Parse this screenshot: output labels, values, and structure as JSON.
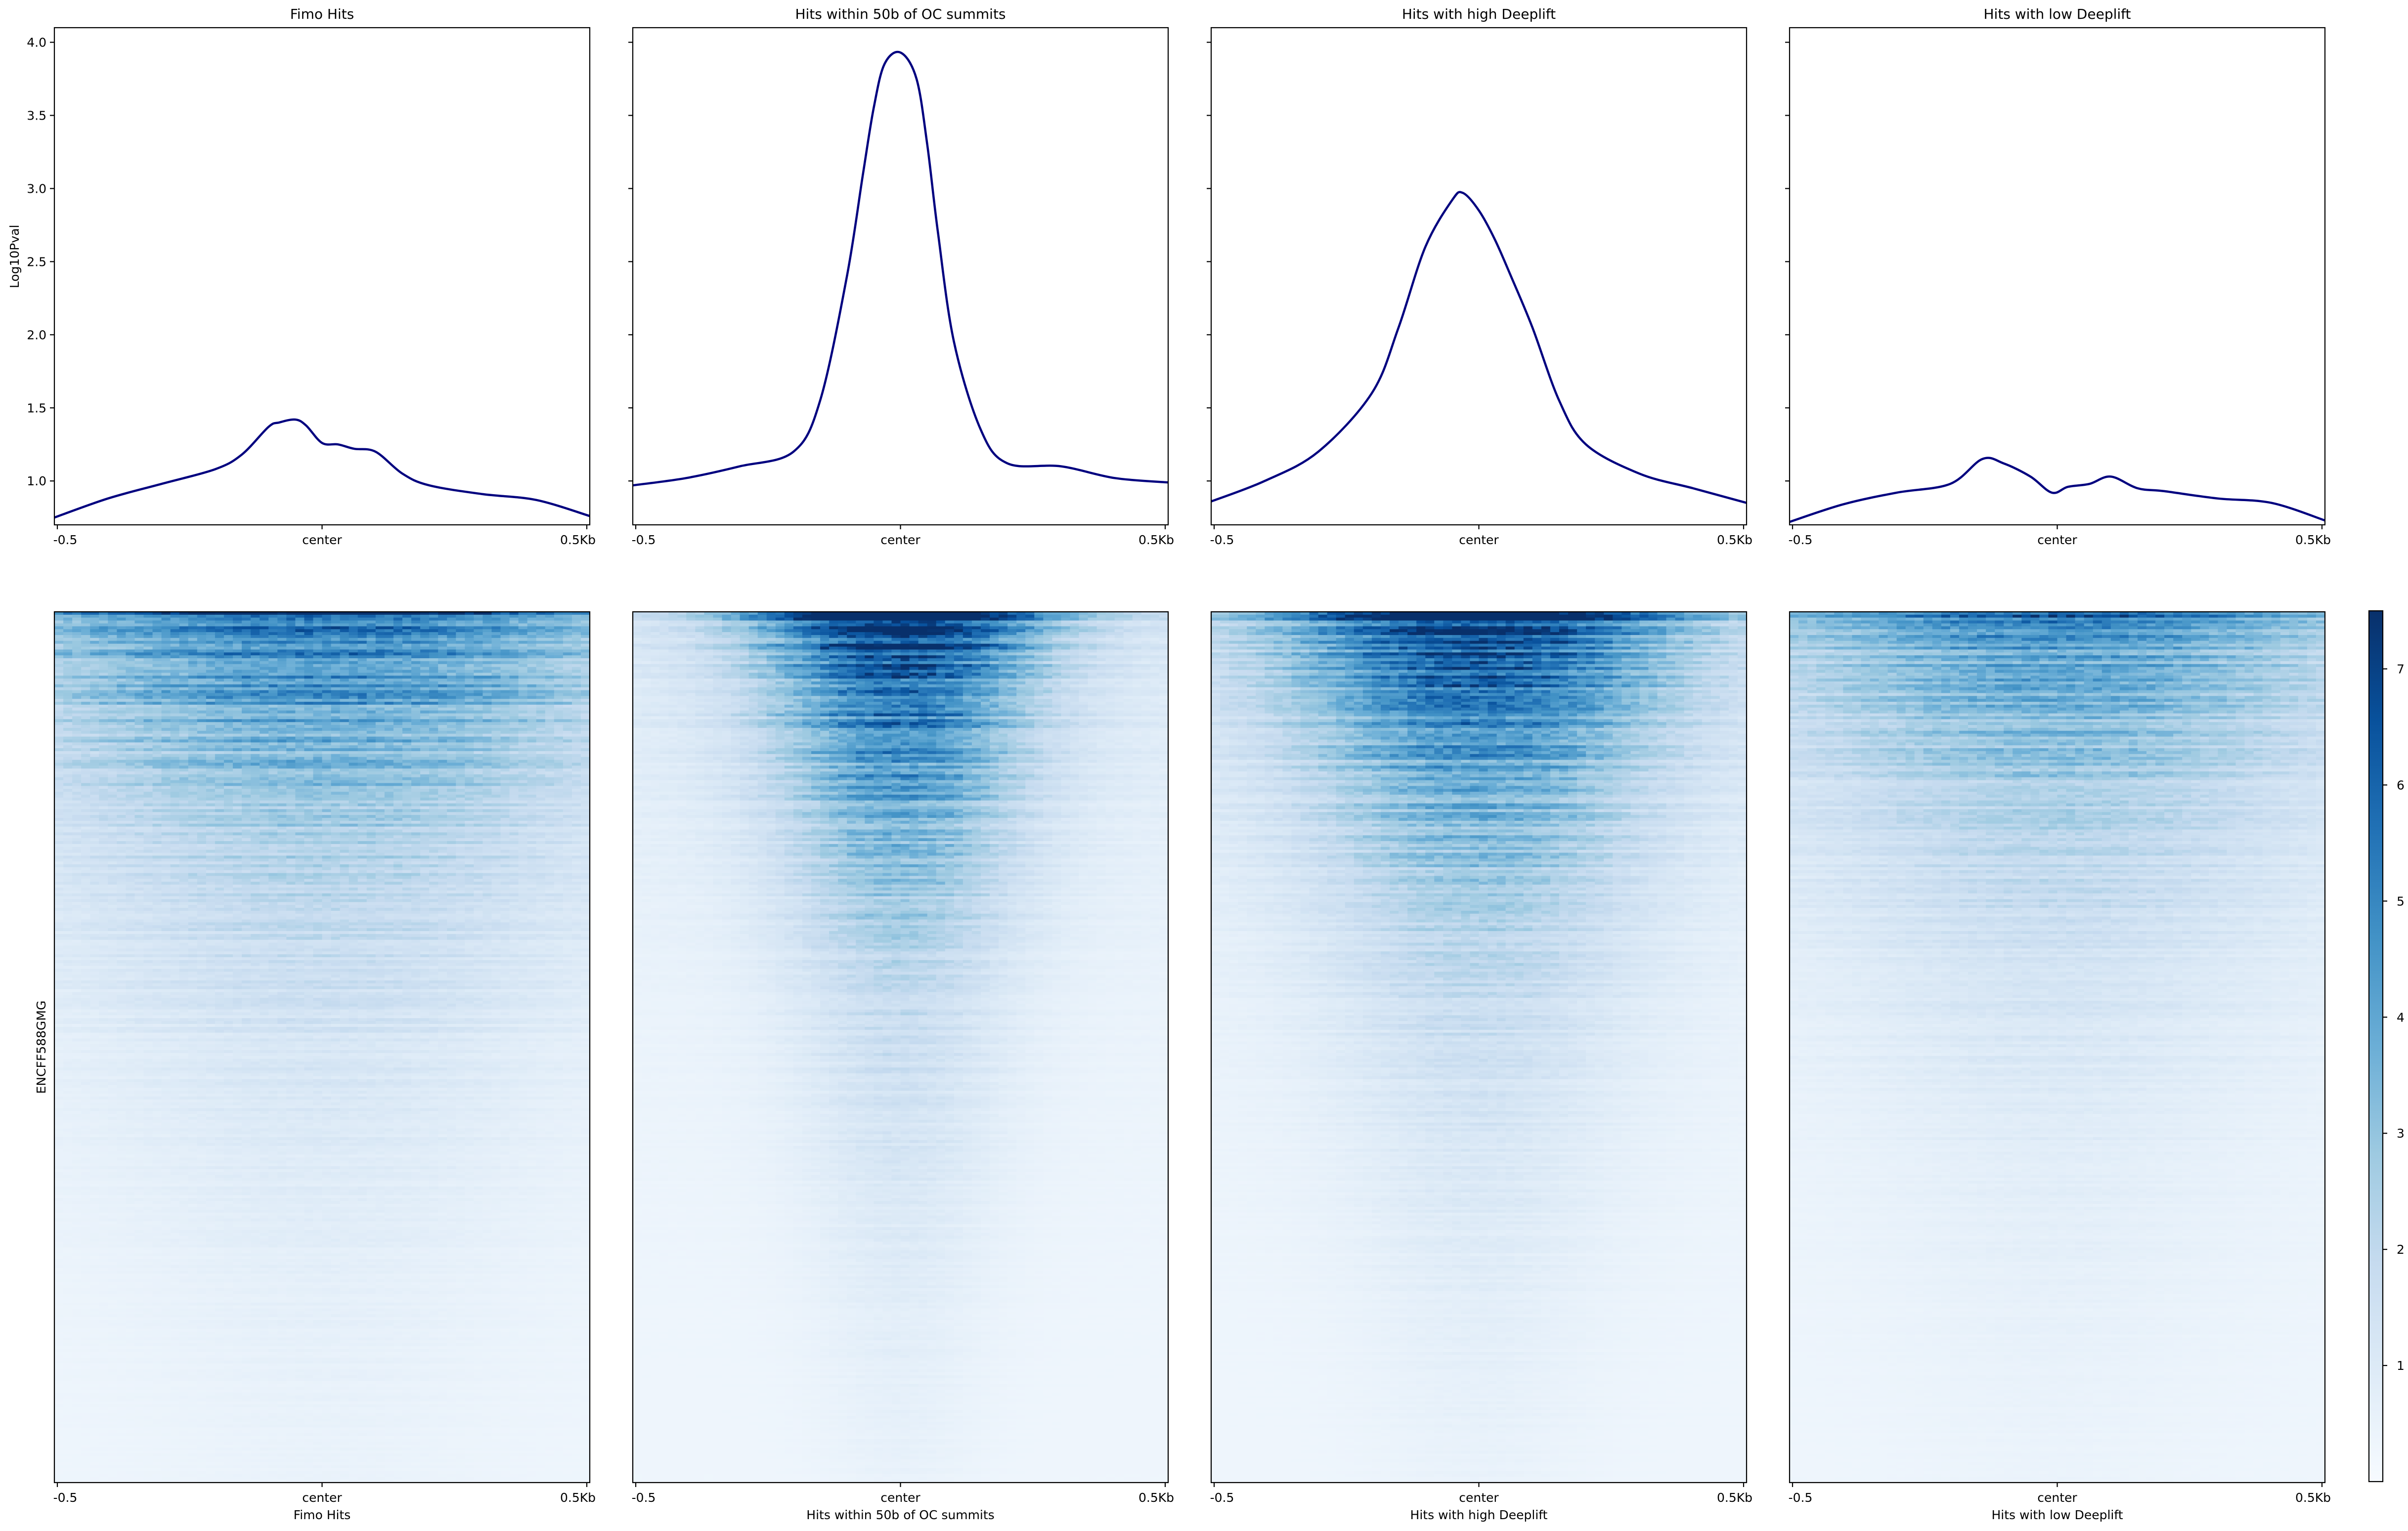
{
  "chart_data": [
    {
      "type": "line",
      "panel": "profile",
      "title": "Fimo Hits",
      "ylabel": "Log10Pval",
      "ylim": [
        0.7,
        4.1
      ],
      "yticks": [
        "1.0",
        "1.5",
        "2.0",
        "2.5",
        "3.0",
        "3.5",
        "4.0"
      ],
      "xticks": [
        "-0.5",
        "center",
        "0.5Kb"
      ],
      "x": [
        -0.5,
        -0.4,
        -0.3,
        -0.2,
        -0.15,
        -0.1,
        -0.08,
        -0.05,
        -0.03,
        0.0,
        0.03,
        0.06,
        0.1,
        0.15,
        0.2,
        0.3,
        0.4,
        0.5
      ],
      "y": [
        0.75,
        0.88,
        0.98,
        1.08,
        1.18,
        1.37,
        1.4,
        1.42,
        1.38,
        1.26,
        1.25,
        1.22,
        1.2,
        1.05,
        0.97,
        0.91,
        0.87,
        0.76
      ]
    },
    {
      "type": "line",
      "panel": "profile",
      "title": "Hits within 50b of OC summits",
      "ylim": [
        0.7,
        4.1
      ],
      "xticks": [
        "-0.5",
        "center",
        "0.5Kb"
      ],
      "x": [
        -0.5,
        -0.4,
        -0.3,
        -0.2,
        -0.15,
        -0.1,
        -0.07,
        -0.05,
        -0.03,
        0.0,
        0.03,
        0.05,
        0.07,
        0.1,
        0.15,
        0.2,
        0.3,
        0.4,
        0.5
      ],
      "y": [
        0.97,
        1.02,
        1.1,
        1.2,
        1.55,
        2.4,
        3.1,
        3.55,
        3.85,
        3.93,
        3.75,
        3.3,
        2.7,
        1.95,
        1.35,
        1.12,
        1.1,
        1.02,
        0.99
      ]
    },
    {
      "type": "line",
      "panel": "profile",
      "title": "Hits with high Deeplift",
      "ylim": [
        0.7,
        4.1
      ],
      "xticks": [
        "-0.5",
        "center",
        "0.5Kb"
      ],
      "x": [
        -0.5,
        -0.4,
        -0.3,
        -0.2,
        -0.15,
        -0.1,
        -0.05,
        -0.03,
        0.0,
        0.03,
        0.06,
        0.1,
        0.15,
        0.2,
        0.3,
        0.4,
        0.5
      ],
      "y": [
        0.86,
        1.0,
        1.2,
        1.6,
        2.05,
        2.6,
        2.92,
        2.97,
        2.85,
        2.65,
        2.4,
        2.05,
        1.55,
        1.25,
        1.05,
        0.95,
        0.85
      ]
    },
    {
      "type": "line",
      "panel": "profile",
      "title": "Hits with low Deeplift",
      "ylim": [
        0.7,
        4.1
      ],
      "xticks": [
        "-0.5",
        "center",
        "0.5Kb"
      ],
      "x": [
        -0.5,
        -0.4,
        -0.3,
        -0.2,
        -0.14,
        -0.1,
        -0.05,
        -0.01,
        0.02,
        0.06,
        0.1,
        0.15,
        0.2,
        0.3,
        0.4,
        0.5
      ],
      "y": [
        0.72,
        0.84,
        0.92,
        0.98,
        1.15,
        1.12,
        1.03,
        0.92,
        0.96,
        0.98,
        1.03,
        0.95,
        0.93,
        0.88,
        0.85,
        0.73
      ]
    },
    {
      "type": "heatmap",
      "panel": "heatmap",
      "xlabel": "Fimo Hits",
      "ylabel": "ENCFF588GMG",
      "xticks": [
        "-0.5",
        "center",
        "0.5Kb"
      ],
      "intensity": {
        "peak": 5.5,
        "center_width": 0.22,
        "flank": 2.5
      }
    },
    {
      "type": "heatmap",
      "panel": "heatmap",
      "xlabel": "Hits within 50b of OC summits",
      "xticks": [
        "-0.5",
        "center",
        "0.5Kb"
      ],
      "intensity": {
        "peak": 7.5,
        "center_width": 0.1,
        "flank": 2.0
      }
    },
    {
      "type": "heatmap",
      "panel": "heatmap",
      "xlabel": "Hits with high Deeplift",
      "xticks": [
        "-0.5",
        "center",
        "0.5Kb"
      ],
      "intensity": {
        "peak": 7.0,
        "center_width": 0.14,
        "flank": 2.2
      }
    },
    {
      "type": "heatmap",
      "panel": "heatmap",
      "xlabel": "Hits with low Deeplift",
      "xticks": [
        "-0.5",
        "center",
        "0.5Kb"
      ],
      "intensity": {
        "peak": 4.5,
        "center_width": 0.2,
        "flank": 2.3
      }
    }
  ],
  "colorbar": {
    "range": [
      0,
      7.5
    ],
    "ticks": [
      "1",
      "2",
      "3",
      "4",
      "5",
      "6",
      "7"
    ],
    "colors": [
      "#f7fbff",
      "#deebf7",
      "#c6dbef",
      "#9ecae1",
      "#6baed6",
      "#4292c6",
      "#2171b5",
      "#08519c",
      "#08306b"
    ]
  },
  "line_color": "#00007f"
}
